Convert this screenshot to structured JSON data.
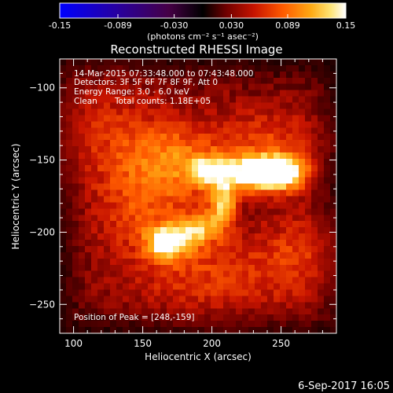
{
  "chart_data": {
    "type": "heatmap",
    "title": "Reconstructed RHESSI Image",
    "xlabel": "Heliocentric X (arcsec)",
    "ylabel": "Heliocentric Y (arcsec)",
    "xlim": [
      90,
      290
    ],
    "ylim": [
      -270,
      -80
    ],
    "xticks": [
      100,
      150,
      200,
      250
    ],
    "yticks": [
      -100,
      -150,
      -200,
      -250
    ],
    "colorbar": {
      "label": "(photons cm⁻² s⁻¹ asec⁻²)",
      "range": [
        -0.15,
        0.15
      ],
      "ticks": [
        "-0.15",
        "-0.089",
        "-0.030",
        "0.030",
        "0.089",
        "0.15"
      ],
      "tick_values": [
        -0.15,
        -0.089,
        -0.03,
        0.03,
        0.089,
        0.15
      ]
    },
    "annotations": {
      "time_range": "14-Mar-2015 07:33:48.000 to 07:43:48.000",
      "detectors": "Detectors: 3F 5F 6F 7F 8F 9F, Att 0",
      "energy": "Energy Range: 3.0 - 6.0 keV",
      "method": "Clean",
      "counts": "Total counts: 1.18E+05",
      "peak": "Position of Peak = [248,-159]"
    },
    "sources": [
      {
        "x": 248,
        "y": -159,
        "peak": 0.15,
        "sx": 14,
        "sy": 8
      },
      {
        "x": 222,
        "y": -159,
        "peak": 0.1,
        "sx": 18,
        "sy": 9
      },
      {
        "x": 195,
        "y": -158,
        "peak": 0.07,
        "sx": 8,
        "sy": 7
      },
      {
        "x": 208,
        "y": -182,
        "peak": 0.09,
        "sx": 7,
        "sy": 12
      },
      {
        "x": 168,
        "y": -207,
        "peak": 0.12,
        "sx": 10,
        "sy": 8
      },
      {
        "x": 190,
        "y": -198,
        "peak": 0.08,
        "sx": 9,
        "sy": 8
      },
      {
        "x": 175,
        "y": -150,
        "peak": 0.05,
        "sx": 22,
        "sy": 18
      },
      {
        "x": 150,
        "y": -180,
        "peak": 0.045,
        "sx": 25,
        "sy": 30
      },
      {
        "x": 240,
        "y": -135,
        "peak": 0.04,
        "sx": 28,
        "sy": 16
      },
      {
        "x": 200,
        "y": -230,
        "peak": 0.04,
        "sx": 35,
        "sy": 20
      },
      {
        "x": 120,
        "y": -130,
        "peak": 0.03,
        "sx": 30,
        "sy": 25
      },
      {
        "x": 265,
        "y": -215,
        "peak": 0.035,
        "sx": 22,
        "sy": 22
      }
    ],
    "background_level": 0.028
  },
  "footer": {
    "date": "6-Sep-2017 16:05"
  }
}
